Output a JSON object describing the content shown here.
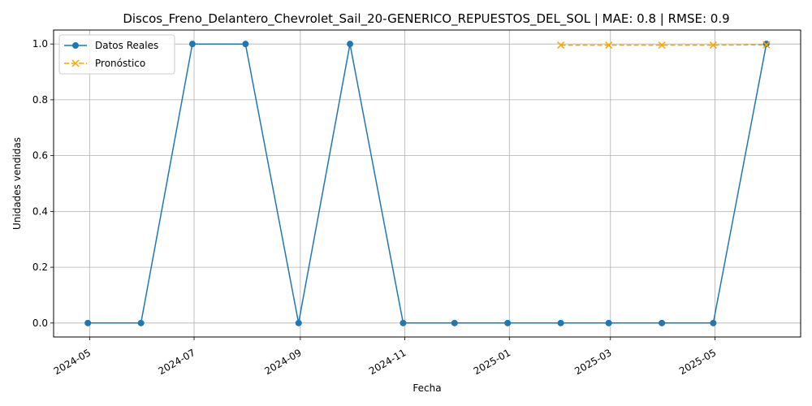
{
  "chart_data": {
    "type": "line",
    "title": "Discos_Freno_Delantero_Chevrolet_Sail_20-GENERICO_REPUESTOS_DEL_SOL | MAE: 0.8 | RMSE: 0.9",
    "xlabel": "Fecha",
    "ylabel": "Unidades vendidas",
    "xlim": [
      "2024-04-10",
      "2025-06-20"
    ],
    "ylim": [
      -0.05,
      1.05
    ],
    "x_ticks": [
      "2024-05",
      "2024-07",
      "2024-09",
      "2024-11",
      "2025-01",
      "2025-03",
      "2025-05"
    ],
    "x_tick_dates": [
      "2024-05-01",
      "2024-07-01",
      "2024-09-01",
      "2024-11-01",
      "2025-01-01",
      "2025-03-01",
      "2025-05-01"
    ],
    "y_ticks": [
      "0.0",
      "0.2",
      "0.4",
      "0.6",
      "0.8",
      "1.0"
    ],
    "y_tick_values": [
      0.0,
      0.2,
      0.4,
      0.6,
      0.8,
      1.0
    ],
    "grid": true,
    "legend_position": "top-left",
    "series": [
      {
        "name": "Datos Reales",
        "color": "#1f77b4",
        "marker": "circle",
        "linestyle": "solid",
        "points": [
          {
            "x": "2024-04-30",
            "y": 0
          },
          {
            "x": "2024-05-31",
            "y": 0
          },
          {
            "x": "2024-06-30",
            "y": 1
          },
          {
            "x": "2024-07-31",
            "y": 1
          },
          {
            "x": "2024-08-31",
            "y": 0
          },
          {
            "x": "2024-09-30",
            "y": 1
          },
          {
            "x": "2024-10-31",
            "y": 0
          },
          {
            "x": "2024-11-30",
            "y": 0
          },
          {
            "x": "2024-12-31",
            "y": 0
          },
          {
            "x": "2025-01-31",
            "y": 0
          },
          {
            "x": "2025-02-28",
            "y": 0
          },
          {
            "x": "2025-03-31",
            "y": 0
          },
          {
            "x": "2025-04-30",
            "y": 0
          },
          {
            "x": "2025-05-31",
            "y": 1
          }
        ]
      },
      {
        "name": "Pronóstico",
        "color": "#ffa500",
        "marker": "x",
        "linestyle": "dashed",
        "points": [
          {
            "x": "2025-01-31",
            "y": 0.996
          },
          {
            "x": "2025-02-28",
            "y": 0.996
          },
          {
            "x": "2025-03-31",
            "y": 0.996
          },
          {
            "x": "2025-04-30",
            "y": 0.996
          },
          {
            "x": "2025-05-31",
            "y": 0.997
          }
        ]
      }
    ]
  }
}
